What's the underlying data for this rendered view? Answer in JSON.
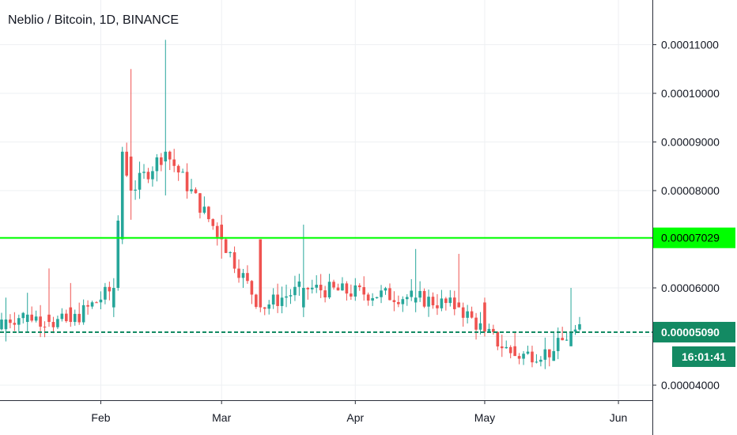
{
  "title": "Neblio / Bitcoin, 1D, BINANCE",
  "price_labels": {
    "horizontal_line": "0.00007029",
    "last_price": "0.00005090",
    "countdown": "16:01:41"
  },
  "colors": {
    "up": "#26a69a",
    "down": "#ef5350",
    "hline": "#00ff00",
    "last_price": "#138a63",
    "grid": "#eef0f3",
    "axis_text": "#131722"
  },
  "chart_data": {
    "type": "candlestick",
    "title": "Neblio / Bitcoin, 1D, BINANCE",
    "ylim": [
      3.75e-05,
      0.000119
    ],
    "y_ticks": [
      "0.00004000",
      "0.00005000",
      "0.00006000",
      "0.00007000",
      "0.00008000",
      "0.00009000",
      "0.00010000",
      "0.00011000"
    ],
    "y_tick_values": [
      4e-05,
      5e-05,
      6e-05,
      7e-05,
      8e-05,
      9e-05,
      0.0001,
      0.00011
    ],
    "x_ticks": [
      "Feb",
      "Mar",
      "Apr",
      "May",
      "Jun"
    ],
    "x_tick_dates": [
      "2021-02-01",
      "2021-03-01",
      "2021-04-01",
      "2021-05-01",
      "2021-06-01"
    ],
    "x_range": [
      "2021-01-09",
      "2021-06-08"
    ],
    "horizontal_line": 7.029e-05,
    "last_price": 5.09e-05,
    "ohlc_sample": [
      {
        "date": "2021-01-10",
        "o": 5.15e-05,
        "h": 5.8e-05,
        "l": 4.9e-05,
        "c": 5.35e-05
      },
      {
        "date": "2021-01-15",
        "o": 5.3e-05,
        "h": 5.9e-05,
        "l": 5.1e-05,
        "c": 5.45e-05
      },
      {
        "date": "2021-01-20",
        "o": 5.45e-05,
        "h": 6.4e-05,
        "l": 5.2e-05,
        "c": 5.3e-05
      },
      {
        "date": "2021-01-25",
        "o": 5.6e-05,
        "h": 6.1e-05,
        "l": 5.2e-05,
        "c": 5.3e-05
      },
      {
        "date": "2021-02-04",
        "o": 5.6e-05,
        "h": 6.2e-05,
        "l": 5.4e-05,
        "c": 6e-05
      },
      {
        "date": "2021-02-06",
        "o": 7e-05,
        "h": 8.9e-05,
        "l": 6.9e-05,
        "c": 8.8e-05
      },
      {
        "date": "2021-02-08",
        "o": 8.7e-05,
        "h": 0.000105,
        "l": 7.4e-05,
        "c": 8e-05
      },
      {
        "date": "2021-02-16",
        "o": 8.6e-05,
        "h": 0.000111,
        "l": 7.9e-05,
        "c": 8.8e-05
      },
      {
        "date": "2021-03-01",
        "o": 7.3e-05,
        "h": 7.5e-05,
        "l": 6.6e-05,
        "c": 7e-05
      },
      {
        "date": "2021-03-10",
        "o": 7e-05,
        "h": 7e-05,
        "l": 5.5e-05,
        "c": 5.6e-05
      },
      {
        "date": "2021-03-20",
        "o": 5.6e-05,
        "h": 7.3e-05,
        "l": 5.4e-05,
        "c": 6e-05
      },
      {
        "date": "2021-04-15",
        "o": 5.7e-05,
        "h": 6.8e-05,
        "l": 5.5e-05,
        "c": 5.8e-05
      },
      {
        "date": "2021-04-25",
        "o": 5.7e-05,
        "h": 6.7e-05,
        "l": 5.6e-05,
        "c": 5.6e-05
      },
      {
        "date": "2021-05-01",
        "o": 5.7e-05,
        "h": 5.8e-05,
        "l": 5e-05,
        "c": 5.1e-05
      },
      {
        "date": "2021-05-08",
        "o": 4.8e-05,
        "h": 5.1e-05,
        "l": 4.6e-05,
        "c": 4.6e-05
      },
      {
        "date": "2021-05-17",
        "o": 4.5e-05,
        "h": 5.1e-05,
        "l": 4.5e-05,
        "c": 4.7e-05
      },
      {
        "date": "2021-05-21",
        "o": 4.8e-05,
        "h": 6e-05,
        "l": 4.8e-05,
        "c": 5.1e-05
      }
    ]
  }
}
